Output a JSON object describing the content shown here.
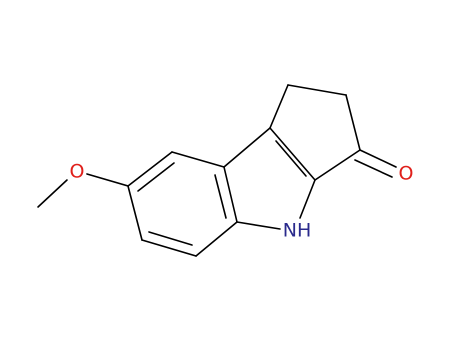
{
  "atoms": {
    "methoxy_oxygen": "O",
    "ketone_oxygen": "O",
    "amine": "NH"
  }
}
